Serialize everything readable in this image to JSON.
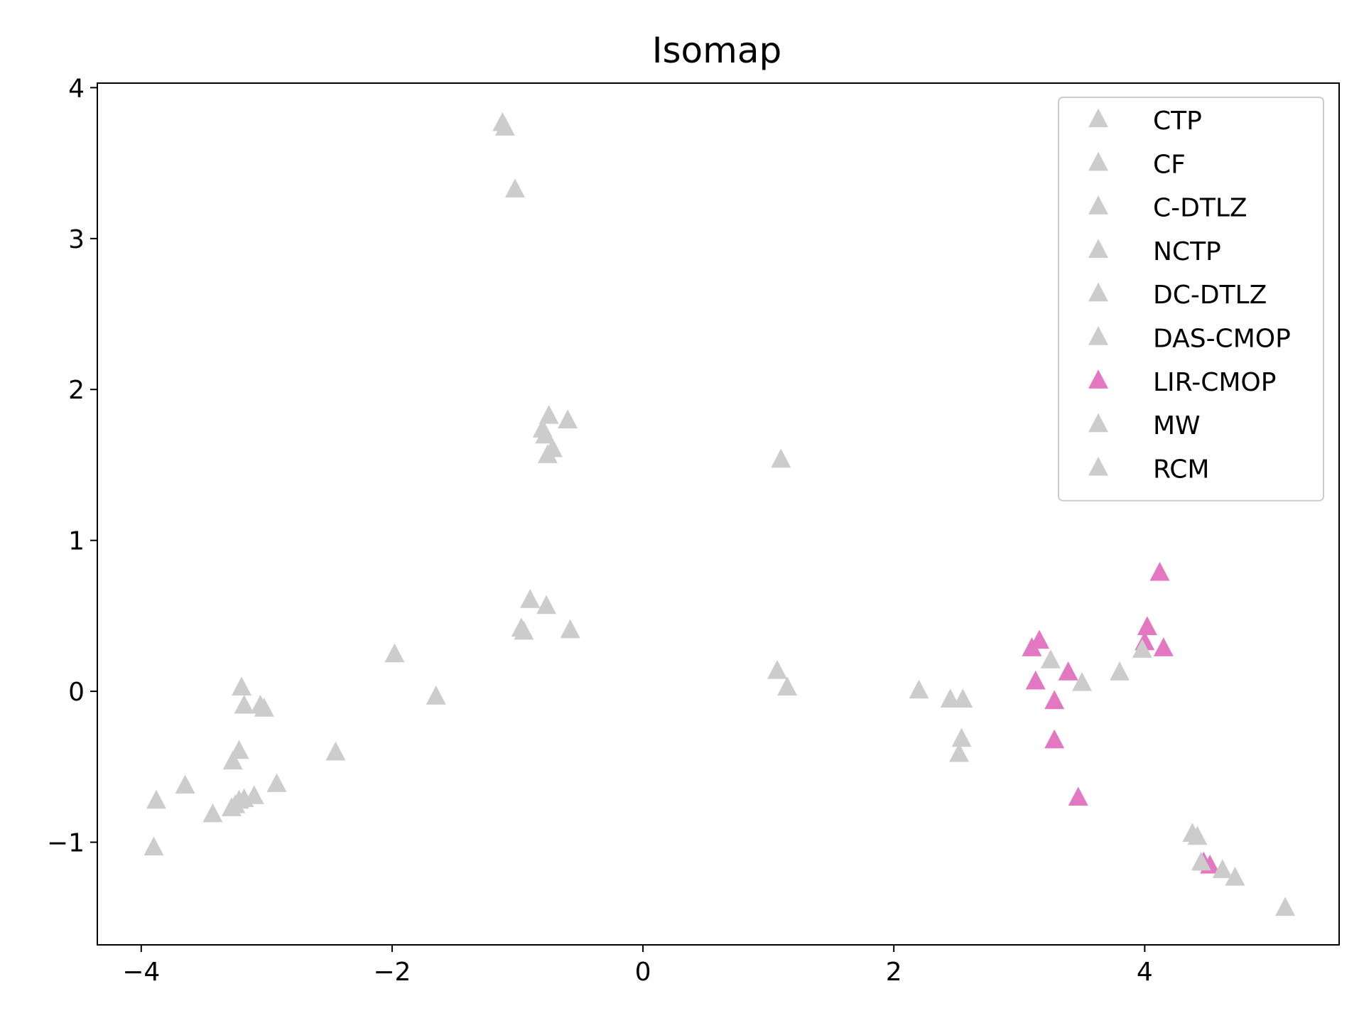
{
  "chart_data": {
    "type": "scatter",
    "title": "Isomap",
    "xlabel": "",
    "ylabel": "",
    "xlim": [
      -4.35,
      5.55
    ],
    "ylim": [
      -1.68,
      4.03
    ],
    "xticks": [
      -4,
      -2,
      0,
      2,
      4
    ],
    "yticks": [
      -1,
      0,
      1,
      2,
      3,
      4
    ],
    "xtick_labels": [
      "−4",
      "−2",
      "0",
      "2",
      "4"
    ],
    "ytick_labels": [
      "−1",
      "0",
      "1",
      "2",
      "3",
      "4"
    ],
    "grid": false,
    "legend_position": "top-right",
    "marker": "triangle",
    "series": [
      {
        "name": "CTP",
        "color": "#cccccc",
        "points": [
          [
            -3.9,
            -1.04
          ],
          [
            -3.88,
            -0.73
          ],
          [
            -3.65,
            -0.63
          ],
          [
            -3.43,
            -0.82
          ],
          [
            -3.28,
            -0.78
          ],
          [
            -3.25,
            -0.76
          ],
          [
            -3.22,
            -0.73
          ],
          [
            -3.18,
            -0.72
          ],
          [
            -3.1,
            -0.7
          ],
          [
            -2.92,
            -0.62
          ]
        ]
      },
      {
        "name": "CF",
        "color": "#cccccc",
        "points": [
          [
            -3.2,
            0.02
          ],
          [
            -3.18,
            -0.1
          ],
          [
            -3.05,
            -0.1
          ],
          [
            -3.02,
            -0.12
          ],
          [
            -3.22,
            -0.4
          ],
          [
            -3.27,
            -0.47
          ],
          [
            -2.45,
            -0.41
          ],
          [
            -1.98,
            0.24
          ],
          [
            -1.65,
            -0.04
          ]
        ]
      },
      {
        "name": "C-DTLZ",
        "color": "#cccccc",
        "points": [
          [
            -1.12,
            3.76
          ],
          [
            -1.1,
            3.73
          ],
          [
            -1.02,
            3.32
          ]
        ]
      },
      {
        "name": "NCTP",
        "color": "#cccccc",
        "points": [
          [
            -0.8,
            1.73
          ],
          [
            -0.75,
            1.82
          ],
          [
            -0.6,
            1.79
          ],
          [
            -0.78,
            1.69
          ],
          [
            -0.72,
            1.6
          ],
          [
            -0.76,
            1.56
          ]
        ]
      },
      {
        "name": "DC-DTLZ",
        "color": "#cccccc",
        "points": [
          [
            -0.9,
            0.6
          ],
          [
            -0.77,
            0.56
          ],
          [
            -0.97,
            0.41
          ],
          [
            -0.95,
            0.39
          ],
          [
            -0.58,
            0.4
          ]
        ]
      },
      {
        "name": "DAS-CMOP",
        "color": "#cccccc",
        "points": [
          [
            1.1,
            1.53
          ],
          [
            1.07,
            0.13
          ],
          [
            1.15,
            0.02
          ],
          [
            2.2,
            0.0
          ],
          [
            2.45,
            -0.06
          ],
          [
            2.55,
            -0.06
          ],
          [
            2.54,
            -0.32
          ],
          [
            2.52,
            -0.42
          ]
        ]
      },
      {
        "name": "LIR-CMOP",
        "color": "#e377c2",
        "points": [
          [
            3.1,
            0.28
          ],
          [
            3.16,
            0.33
          ],
          [
            3.13,
            0.06
          ],
          [
            3.39,
            0.12
          ],
          [
            3.28,
            -0.07
          ],
          [
            3.28,
            -0.33
          ],
          [
            3.47,
            -0.71
          ],
          [
            4.02,
            0.42
          ],
          [
            4.0,
            0.32
          ],
          [
            4.15,
            0.28
          ],
          [
            4.12,
            0.78
          ],
          [
            4.47,
            -1.14
          ],
          [
            4.52,
            -1.16
          ]
        ]
      },
      {
        "name": "MW",
        "color": "#cccccc",
        "points": [
          [
            3.25,
            0.2
          ],
          [
            3.5,
            0.05
          ],
          [
            3.8,
            0.12
          ],
          [
            3.98,
            0.27
          ]
        ]
      },
      {
        "name": "RCM",
        "color": "#cccccc",
        "points": [
          [
            4.38,
            -0.95
          ],
          [
            4.42,
            -0.97
          ],
          [
            4.45,
            -1.14
          ],
          [
            4.62,
            -1.19
          ],
          [
            4.72,
            -1.24
          ],
          [
            5.12,
            -1.44
          ]
        ]
      }
    ]
  }
}
